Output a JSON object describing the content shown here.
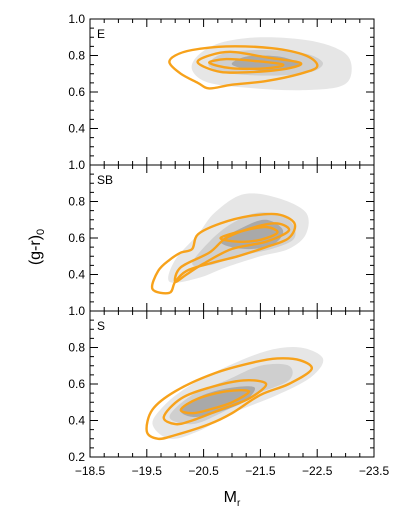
{
  "chart_data": [
    {
      "type": "contour",
      "panel_label": "E",
      "xlim": [
        -18.5,
        -23.5
      ],
      "ylim": [
        0.2,
        1.0
      ],
      "yticks": [
        "1.0",
        "0.8",
        "0.6",
        "0.4"
      ],
      "colors": {
        "filled": [
          "#e6e6e6",
          "#cfcfcf",
          "#a9a9a9"
        ],
        "lines": "#f7a21b"
      },
      "filled_contours": [
        [
          [
            -20.3,
            0.72
          ],
          [
            -20.6,
            0.65
          ],
          [
            -21.4,
            0.62
          ],
          [
            -22.2,
            0.61
          ],
          [
            -22.9,
            0.63
          ],
          [
            -23.1,
            0.7
          ],
          [
            -23.0,
            0.81
          ],
          [
            -22.4,
            0.88
          ],
          [
            -21.5,
            0.9
          ],
          [
            -20.8,
            0.87
          ],
          [
            -20.4,
            0.8
          ]
        ],
        [
          [
            -20.6,
            0.74
          ],
          [
            -21.0,
            0.7
          ],
          [
            -21.8,
            0.69
          ],
          [
            -22.4,
            0.71
          ],
          [
            -22.6,
            0.76
          ],
          [
            -22.3,
            0.81
          ],
          [
            -21.6,
            0.83
          ],
          [
            -21.0,
            0.82
          ],
          [
            -20.7,
            0.79
          ]
        ],
        [
          [
            -21.0,
            0.75
          ],
          [
            -21.4,
            0.72
          ],
          [
            -21.9,
            0.72
          ],
          [
            -22.2,
            0.75
          ],
          [
            -21.9,
            0.79
          ],
          [
            -21.5,
            0.8
          ],
          [
            -21.2,
            0.79
          ]
        ]
      ],
      "line_contours": [
        [
          [
            -19.9,
            0.76
          ],
          [
            -20.1,
            0.7
          ],
          [
            -20.4,
            0.65
          ],
          [
            -20.6,
            0.62
          ],
          [
            -21.0,
            0.64
          ],
          [
            -21.6,
            0.66
          ],
          [
            -22.2,
            0.7
          ],
          [
            -22.5,
            0.74
          ],
          [
            -22.3,
            0.8
          ],
          [
            -21.7,
            0.84
          ],
          [
            -20.9,
            0.85
          ],
          [
            -20.3,
            0.83
          ],
          [
            -20.0,
            0.8
          ]
        ],
        [
          [
            -20.4,
            0.76
          ],
          [
            -20.8,
            0.71
          ],
          [
            -21.4,
            0.71
          ],
          [
            -22.0,
            0.73
          ],
          [
            -22.2,
            0.76
          ],
          [
            -21.6,
            0.79
          ],
          [
            -21.0,
            0.82
          ],
          [
            -20.6,
            0.8
          ]
        ],
        [
          [
            -20.6,
            0.76
          ],
          [
            -21.0,
            0.73
          ],
          [
            -21.6,
            0.73
          ],
          [
            -21.9,
            0.75
          ],
          [
            -21.4,
            0.77
          ],
          [
            -20.9,
            0.78
          ]
        ]
      ]
    },
    {
      "type": "contour",
      "panel_label": "SB",
      "xlim": [
        -18.5,
        -23.5
      ],
      "ylim": [
        0.2,
        1.0
      ],
      "yticks": [
        "1.0",
        "0.8",
        "0.6",
        "0.4"
      ],
      "colors": {
        "filled": [
          "#e6e6e6",
          "#cfcfcf",
          "#a9a9a9"
        ],
        "lines": "#f7a21b"
      },
      "filled_contours": [
        [
          [
            -19.9,
            0.36
          ],
          [
            -20.0,
            0.48
          ],
          [
            -20.4,
            0.62
          ],
          [
            -20.7,
            0.74
          ],
          [
            -21.2,
            0.84
          ],
          [
            -21.8,
            0.82
          ],
          [
            -22.3,
            0.74
          ],
          [
            -22.3,
            0.62
          ],
          [
            -22.0,
            0.54
          ],
          [
            -21.5,
            0.5
          ],
          [
            -20.9,
            0.44
          ],
          [
            -20.4,
            0.38
          ]
        ],
        [
          [
            -20.3,
            0.46
          ],
          [
            -20.6,
            0.58
          ],
          [
            -21.0,
            0.68
          ],
          [
            -21.5,
            0.74
          ],
          [
            -22.0,
            0.7
          ],
          [
            -22.1,
            0.6
          ],
          [
            -21.7,
            0.54
          ],
          [
            -21.1,
            0.5
          ],
          [
            -20.6,
            0.45
          ]
        ],
        [
          [
            -20.8,
            0.58
          ],
          [
            -21.2,
            0.66
          ],
          [
            -21.6,
            0.7
          ],
          [
            -21.9,
            0.64
          ],
          [
            -21.7,
            0.56
          ],
          [
            -21.2,
            0.54
          ]
        ]
      ],
      "line_contours": [
        [
          [
            -19.6,
            0.32
          ],
          [
            -19.7,
            0.42
          ],
          [
            -19.9,
            0.48
          ],
          [
            -20.1,
            0.52
          ],
          [
            -20.3,
            0.54
          ],
          [
            -20.4,
            0.62
          ],
          [
            -20.8,
            0.68
          ],
          [
            -21.3,
            0.72
          ],
          [
            -21.8,
            0.73
          ],
          [
            -22.1,
            0.68
          ],
          [
            -22.0,
            0.6
          ],
          [
            -21.6,
            0.55
          ],
          [
            -21.1,
            0.5
          ],
          [
            -20.6,
            0.46
          ],
          [
            -20.2,
            0.42
          ],
          [
            -20.0,
            0.36
          ],
          [
            -19.9,
            0.3
          ]
        ],
        [
          [
            -20.0,
            0.36
          ],
          [
            -20.1,
            0.44
          ],
          [
            -20.6,
            0.52
          ],
          [
            -20.9,
            0.6
          ],
          [
            -21.4,
            0.66
          ],
          [
            -21.8,
            0.68
          ],
          [
            -22.0,
            0.64
          ],
          [
            -21.6,
            0.58
          ],
          [
            -21.0,
            0.54
          ],
          [
            -20.5,
            0.46
          ],
          [
            -20.2,
            0.4
          ]
        ],
        [
          [
            -20.8,
            0.6
          ],
          [
            -21.2,
            0.64
          ],
          [
            -21.6,
            0.66
          ],
          [
            -21.8,
            0.63
          ],
          [
            -21.5,
            0.59
          ],
          [
            -21.1,
            0.58
          ]
        ]
      ]
    },
    {
      "type": "contour",
      "panel_label": "S",
      "xlim": [
        -18.5,
        -23.5
      ],
      "ylim": [
        0.2,
        1.0
      ],
      "yticks": [
        "1.0",
        "0.8",
        "0.6",
        "0.4",
        "0.2"
      ],
      "xticks": [
        "-18.5",
        "-19.5",
        "-20.5",
        "-21.5",
        "-22.5",
        "-23.5"
      ],
      "xlabel": "M",
      "xlabel_sub": "r",
      "ylabel": "(g-r)",
      "ylabel_sub": "0",
      "colors": {
        "filled": [
          "#e6e6e6",
          "#cfcfcf",
          "#a9a9a9"
        ],
        "lines": "#f7a21b"
      },
      "filled_contours": [
        [
          [
            -19.6,
            0.38
          ],
          [
            -19.8,
            0.48
          ],
          [
            -20.2,
            0.58
          ],
          [
            -20.8,
            0.68
          ],
          [
            -21.6,
            0.78
          ],
          [
            -22.2,
            0.8
          ],
          [
            -22.6,
            0.74
          ],
          [
            -22.4,
            0.64
          ],
          [
            -21.8,
            0.54
          ],
          [
            -21.0,
            0.44
          ],
          [
            -20.4,
            0.34
          ],
          [
            -19.9,
            0.3
          ]
        ],
        [
          [
            -19.9,
            0.42
          ],
          [
            -20.3,
            0.54
          ],
          [
            -20.9,
            0.62
          ],
          [
            -21.5,
            0.7
          ],
          [
            -22.0,
            0.7
          ],
          [
            -22.0,
            0.62
          ],
          [
            -21.4,
            0.54
          ],
          [
            -20.8,
            0.44
          ],
          [
            -20.3,
            0.38
          ]
        ],
        [
          [
            -20.1,
            0.46
          ],
          [
            -20.5,
            0.54
          ],
          [
            -21.0,
            0.58
          ],
          [
            -21.4,
            0.58
          ],
          [
            -21.2,
            0.5
          ],
          [
            -20.7,
            0.44
          ],
          [
            -20.3,
            0.42
          ]
        ]
      ],
      "line_contours": [
        [
          [
            -19.5,
            0.34
          ],
          [
            -19.6,
            0.46
          ],
          [
            -20.0,
            0.56
          ],
          [
            -20.7,
            0.66
          ],
          [
            -21.4,
            0.72
          ],
          [
            -21.8,
            0.74
          ],
          [
            -22.2,
            0.73
          ],
          [
            -22.4,
            0.68
          ],
          [
            -22.0,
            0.6
          ],
          [
            -21.5,
            0.54
          ],
          [
            -21.0,
            0.44
          ],
          [
            -20.6,
            0.38
          ],
          [
            -20.0,
            0.32
          ],
          [
            -19.7,
            0.3
          ]
        ],
        [
          [
            -19.8,
            0.42
          ],
          [
            -20.1,
            0.52
          ],
          [
            -20.6,
            0.58
          ],
          [
            -21.2,
            0.62
          ],
          [
            -21.6,
            0.6
          ],
          [
            -21.3,
            0.52
          ],
          [
            -20.8,
            0.46
          ],
          [
            -20.3,
            0.4
          ],
          [
            -20.0,
            0.38
          ]
        ],
        [
          [
            -20.1,
            0.46
          ],
          [
            -20.4,
            0.52
          ],
          [
            -20.9,
            0.56
          ],
          [
            -21.3,
            0.56
          ],
          [
            -21.0,
            0.5
          ],
          [
            -20.6,
            0.46
          ],
          [
            -20.3,
            0.44
          ]
        ]
      ]
    }
  ]
}
